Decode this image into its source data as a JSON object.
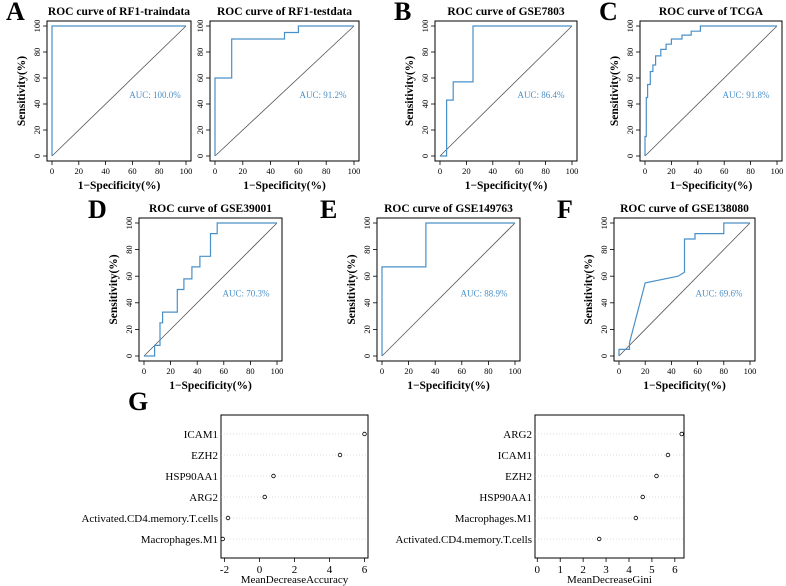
{
  "colors": {
    "curve": "#4a90c8",
    "auc": "#4a90c8",
    "axis": "#000000",
    "diag": "#555555",
    "grid": "#bbbbbb"
  },
  "panel_letters": [
    "A",
    "B",
    "C",
    "D",
    "E",
    "F",
    "G"
  ],
  "chart_data": [
    {
      "type": "line",
      "panel": "A",
      "title": "ROC curve of RF1-traindata",
      "xlabel": "1−Specificity(%)",
      "ylabel": "Sensitivity(%)",
      "auc": "AUC: 100.0%",
      "xlim": [
        0,
        100
      ],
      "ylim": [
        0,
        100
      ],
      "ticks": [
        0,
        20,
        40,
        60,
        80,
        100
      ],
      "show_ylabel": true,
      "x": [
        0,
        0,
        100
      ],
      "y": [
        0,
        100,
        100
      ]
    },
    {
      "type": "line",
      "panel": "A",
      "title": "ROC curve of RF1-testdata",
      "xlabel": "1−Specificity(%)",
      "ylabel": "Sensitivity(%)",
      "auc": "AUC: 91.2%",
      "xlim": [
        0,
        100
      ],
      "ylim": [
        0,
        100
      ],
      "ticks": [
        0,
        20,
        40,
        60,
        80,
        100
      ],
      "show_ylabel": false,
      "x": [
        0,
        0,
        0,
        12,
        12,
        50,
        50,
        60,
        60,
        100
      ],
      "y": [
        0,
        20,
        60,
        60,
        90,
        90,
        95,
        95,
        100,
        100
      ]
    },
    {
      "type": "line",
      "panel": "B",
      "title": "ROC curve of GSE7803",
      "xlabel": "1−Specificity(%)",
      "ylabel": "Sensitivity(%)",
      "auc": "AUC: 86.4%",
      "xlim": [
        0,
        100
      ],
      "ylim": [
        0,
        100
      ],
      "ticks": [
        0,
        20,
        40,
        60,
        80,
        100
      ],
      "show_ylabel": true,
      "x": [
        0,
        5,
        5,
        10,
        10,
        25,
        25,
        100
      ],
      "y": [
        0,
        0,
        43,
        43,
        57,
        57,
        100,
        100
      ]
    },
    {
      "type": "line",
      "panel": "C",
      "title": "ROC curve of TCGA",
      "xlabel": "1−Specificity(%)",
      "ylabel": "Sensitivity(%)",
      "auc": "AUC: 91.8%",
      "xlim": [
        0,
        100
      ],
      "ylim": [
        0,
        100
      ],
      "ticks": [
        0,
        20,
        40,
        60,
        80,
        100
      ],
      "show_ylabel": true,
      "x": [
        0,
        0,
        1,
        1,
        2,
        2,
        4,
        4,
        6,
        6,
        8,
        8,
        12,
        12,
        16,
        16,
        20,
        20,
        28,
        28,
        35,
        35,
        42,
        42,
        100
      ],
      "y": [
        0,
        15,
        15,
        45,
        45,
        55,
        55,
        65,
        65,
        70,
        70,
        77,
        77,
        82,
        82,
        86,
        86,
        90,
        90,
        93,
        93,
        96,
        96,
        100,
        100
      ]
    },
    {
      "type": "line",
      "panel": "D",
      "title": "ROC curve of GSE39001",
      "xlabel": "1−Specificity(%)",
      "ylabel": "Sensitivity(%)",
      "auc": "AUC: 70.3%",
      "xlim": [
        0,
        100
      ],
      "ylim": [
        0,
        100
      ],
      "ticks": [
        0,
        20,
        40,
        60,
        80,
        100
      ],
      "show_ylabel": true,
      "x": [
        0,
        8,
        8,
        12,
        12,
        14,
        14,
        25,
        25,
        30,
        30,
        36,
        36,
        42,
        42,
        50,
        50,
        55,
        55,
        100
      ],
      "y": [
        0,
        0,
        8,
        8,
        25,
        25,
        33,
        33,
        50,
        50,
        58,
        58,
        67,
        67,
        75,
        75,
        92,
        92,
        100,
        100
      ]
    },
    {
      "type": "line",
      "panel": "E",
      "title": "ROC curve of GSE149763",
      "xlabel": "1−Specificity(%)",
      "ylabel": "Sensitivity(%)",
      "auc": "AUC: 88.9%",
      "xlim": [
        0,
        100
      ],
      "ylim": [
        0,
        100
      ],
      "ticks": [
        0,
        20,
        40,
        60,
        80,
        100
      ],
      "show_ylabel": true,
      "x": [
        0,
        0,
        33,
        33,
        100
      ],
      "y": [
        0,
        67,
        67,
        100,
        100
      ]
    },
    {
      "type": "line",
      "panel": "F",
      "title": "ROC curve of GSE138080",
      "xlabel": "1−Specificity(%)",
      "ylabel": "Sensitivity(%)",
      "auc": "AUC: 69.6%",
      "xlim": [
        0,
        100
      ],
      "ylim": [
        0,
        100
      ],
      "ticks": [
        0,
        20,
        40,
        60,
        80,
        100
      ],
      "show_ylabel": true,
      "x": [
        0,
        0,
        8,
        8,
        20,
        45,
        50,
        50,
        58,
        58,
        80,
        80,
        100
      ],
      "y": [
        0,
        5,
        5,
        10,
        55,
        60,
        63,
        88,
        88,
        92,
        92,
        100,
        100
      ]
    },
    {
      "type": "scatter",
      "panel": "G",
      "xlabel": "MeanDecreaseAccuracy",
      "xlim": [
        -2.2,
        6.2
      ],
      "ticks": [
        -2,
        0,
        2,
        4,
        6
      ],
      "categories": [
        "ICAM1",
        "EZH2",
        "HSP90AA1",
        "ARG2",
        "Activated.CD4.memory.T.cells",
        "Macrophages.M1"
      ],
      "values": [
        6.0,
        4.6,
        0.8,
        0.3,
        -1.8,
        -2.1
      ]
    },
    {
      "type": "scatter",
      "panel": "G",
      "xlabel": "MeanDecreaseGini",
      "xlim": [
        -0.1,
        6.4
      ],
      "ticks": [
        0,
        1,
        2,
        3,
        4,
        5,
        6
      ],
      "categories": [
        "ARG2",
        "ICAM1",
        "EZH2",
        "HSP90AA1",
        "Macrophages.M1",
        "Activated.CD4.memory.T.cells"
      ],
      "values": [
        6.3,
        5.7,
        5.2,
        4.6,
        4.3,
        2.7
      ]
    }
  ]
}
